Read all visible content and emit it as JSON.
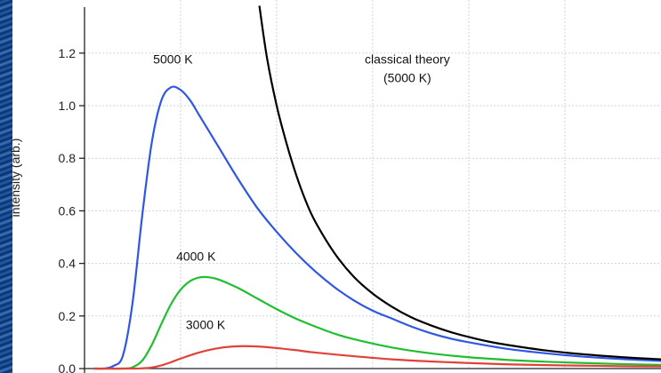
{
  "chart_data": {
    "type": "line",
    "title": "",
    "xlabel": "",
    "ylabel": "intensity (arb.)",
    "ylim": [
      0,
      1.3
    ],
    "xlim": [
      0,
      3.0
    ],
    "yticks": [
      0.0,
      0.2,
      0.4,
      0.6,
      0.8,
      1.0,
      1.2
    ],
    "ytick_labels": [
      "0.0",
      "0.2",
      "0.4",
      "0.6",
      "0.8",
      "1.0",
      "1.2"
    ],
    "grid": true,
    "colors": {
      "5000": "#2f56e6",
      "4000": "#1fbf2f",
      "3000": "#e0423a",
      "classical": "#000000",
      "grid": "#c9d3ef"
    },
    "series": [
      {
        "name": "5000 K",
        "color": "#2f56e6",
        "x": [
          0.05,
          0.1,
          0.15,
          0.2,
          0.25,
          0.3,
          0.35,
          0.4,
          0.45,
          0.5,
          0.55,
          0.6,
          0.7,
          0.8,
          0.9,
          1.0,
          1.1,
          1.2,
          1.3,
          1.4,
          1.5,
          1.6,
          1.7,
          1.8,
          1.9,
          2.0,
          2.2,
          2.4,
          2.6,
          2.8,
          3.0
        ],
        "y": [
          0.0,
          0.0,
          0.01,
          0.05,
          0.25,
          0.58,
          0.86,
          1.02,
          1.07,
          1.06,
          1.02,
          0.96,
          0.84,
          0.72,
          0.61,
          0.52,
          0.44,
          0.37,
          0.31,
          0.26,
          0.22,
          0.19,
          0.16,
          0.135,
          0.115,
          0.1,
          0.075,
          0.058,
          0.045,
          0.036,
          0.029
        ]
      },
      {
        "name": "4000 K",
        "color": "#1fbf2f",
        "x": [
          0.05,
          0.2,
          0.25,
          0.3,
          0.35,
          0.4,
          0.45,
          0.5,
          0.55,
          0.6,
          0.65,
          0.7,
          0.8,
          0.9,
          1.0,
          1.1,
          1.2,
          1.3,
          1.4,
          1.6,
          1.8,
          2.0,
          2.2,
          2.4,
          2.6,
          2.8,
          3.0
        ],
        "y": [
          0.0,
          0.0,
          0.005,
          0.03,
          0.09,
          0.17,
          0.245,
          0.3,
          0.333,
          0.347,
          0.347,
          0.338,
          0.306,
          0.266,
          0.226,
          0.19,
          0.16,
          0.133,
          0.112,
          0.08,
          0.058,
          0.043,
          0.033,
          0.026,
          0.021,
          0.017,
          0.014
        ]
      },
      {
        "name": "3000 K",
        "color": "#e0423a",
        "x": [
          0.05,
          0.25,
          0.3,
          0.35,
          0.4,
          0.45,
          0.5,
          0.6,
          0.7,
          0.8,
          0.9,
          1.0,
          1.1,
          1.2,
          1.4,
          1.6,
          1.8,
          2.0,
          2.2,
          2.4,
          2.6,
          2.8,
          3.0
        ],
        "y": [
          0.0,
          0.0,
          0.001,
          0.004,
          0.012,
          0.024,
          0.038,
          0.062,
          0.078,
          0.085,
          0.084,
          0.078,
          0.07,
          0.061,
          0.047,
          0.035,
          0.027,
          0.021,
          0.016,
          0.013,
          0.011,
          0.009,
          0.008
        ]
      },
      {
        "name": "classical theory (5000 K)",
        "color": "#000000",
        "x": [
          0.91,
          0.95,
          1.0,
          1.05,
          1.1,
          1.15,
          1.2,
          1.3,
          1.4,
          1.5,
          1.6,
          1.7,
          1.8,
          1.9,
          2.0,
          2.1,
          2.2,
          2.4,
          2.6,
          2.8,
          3.0
        ],
        "y": [
          1.38,
          1.18,
          1.0,
          0.86,
          0.74,
          0.64,
          0.56,
          0.44,
          0.35,
          0.285,
          0.235,
          0.195,
          0.165,
          0.14,
          0.12,
          0.103,
          0.09,
          0.069,
          0.054,
          0.043,
          0.035
        ]
      }
    ],
    "annotations": [
      {
        "text": "5000 K",
        "x": 0.46,
        "y": 1.16
      },
      {
        "text": "4000 K",
        "x": 0.58,
        "y": 0.41
      },
      {
        "text": "3000 K",
        "x": 0.63,
        "y": 0.15
      },
      {
        "text": "classical theory",
        "x": 1.68,
        "y": 1.16
      },
      {
        "text": "(5000 K)",
        "x": 1.68,
        "y": 1.09
      }
    ]
  }
}
